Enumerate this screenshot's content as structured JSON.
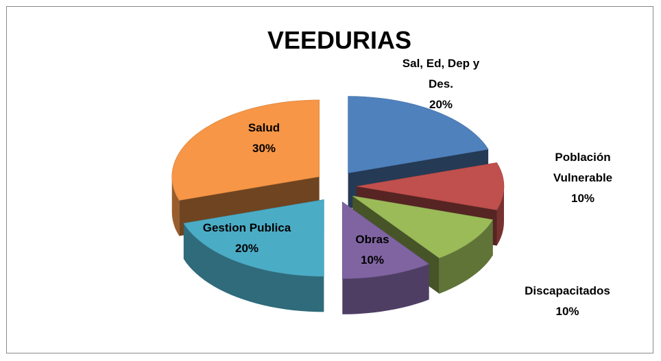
{
  "chart_data": {
    "type": "pie",
    "title": "VEEDURIAS",
    "categories": [
      "Sal, Ed, Dep y Des.",
      "Población Vulnerable",
      "Discapacitados",
      "Obras",
      "Gestion Publica",
      "Salud"
    ],
    "values": [
      20,
      10,
      10,
      10,
      20,
      30
    ],
    "value_labels": [
      "20%",
      "10%",
      "10%",
      "10%",
      "20%",
      "30%"
    ],
    "colors": [
      "#4f81bd",
      "#c0504d",
      "#9bbb59",
      "#8064a2",
      "#4bacc6",
      "#f79646"
    ]
  }
}
